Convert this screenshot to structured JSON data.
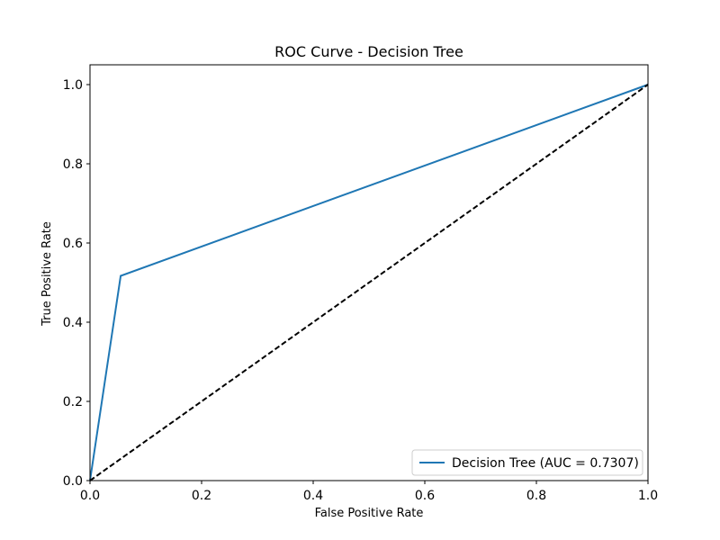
{
  "chart_data": {
    "type": "line",
    "title": "ROC Curve - Decision Tree",
    "xlabel": "False Positive Rate",
    "ylabel": "True Positive Rate",
    "xlim": [
      0.0,
      1.0
    ],
    "ylim": [
      0.0,
      1.05
    ],
    "xticks": [
      "0.0",
      "0.2",
      "0.4",
      "0.6",
      "0.8",
      "1.0"
    ],
    "yticks": [
      "0.0",
      "0.2",
      "0.4",
      "0.6",
      "0.8",
      "1.0"
    ],
    "grid": false,
    "legend_position": "lower-right",
    "series": [
      {
        "name": "Decision Tree (AUC = 0.7307)",
        "color": "#1f77b4",
        "style": "solid",
        "x": [
          0.0,
          0.055,
          1.0
        ],
        "y": [
          0.0,
          0.517,
          1.0
        ]
      },
      {
        "color": "#000000",
        "style": "dashed",
        "x": [
          0.0,
          1.0
        ],
        "y": [
          0.0,
          1.0
        ]
      }
    ]
  }
}
